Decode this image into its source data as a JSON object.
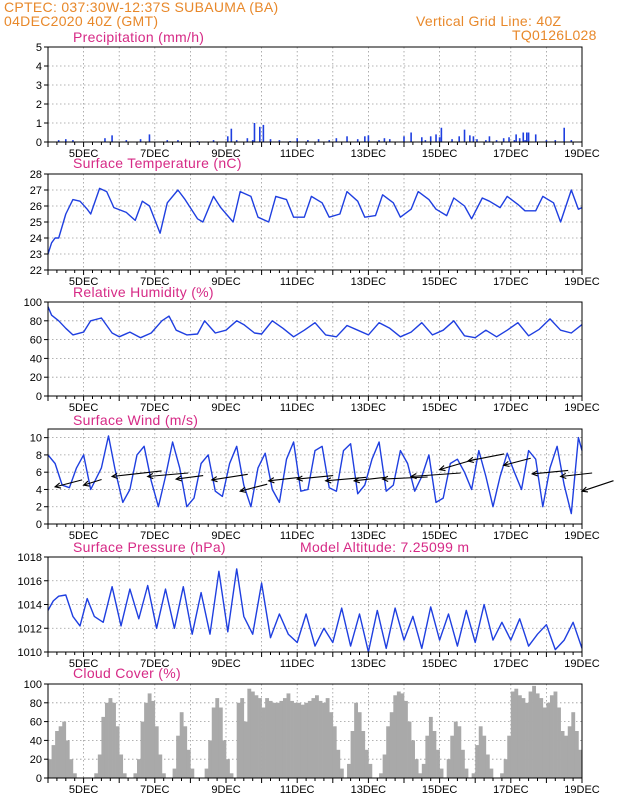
{
  "header": {
    "left_line1": "CPTEC:   037:30W-12:37S   SUBAUMA (BA)",
    "left_line2": "04DEC2020  40Z (GMT)",
    "right_line1": "Vertical Grid Line: 40Z",
    "right_line2": "TQ0126L028"
  },
  "colors": {
    "header": "#e8882a",
    "title": "#d62a86",
    "line": "#1f3fe0",
    "bar": "#1f3fe0",
    "cloud": "#a9a9a9",
    "grid": "#9a9a9a"
  },
  "x_labels": [
    "5DEC",
    "7DEC",
    "9DEC",
    "11DEC",
    "13DEC",
    "15DEC",
    "17DEC",
    "19DEC"
  ],
  "chart_data": [
    {
      "id": "precip",
      "type": "bar",
      "title": "Precipitation (mm/h)",
      "ylim": [
        0,
        5
      ],
      "yticks": [
        0,
        1,
        2,
        3,
        4,
        5
      ],
      "x_unit": "day of December (decimal)",
      "x": [
        4.3,
        4.5,
        4.7,
        5.6,
        5.8,
        6.2,
        6.6,
        6.85,
        7.35,
        7.65,
        8.2,
        8.65,
        9.05,
        9.15,
        9.3,
        9.6,
        9.75,
        9.8,
        9.95,
        10.05,
        10.25,
        10.5,
        10.8,
        11.0,
        11.3,
        11.6,
        11.9,
        12.1,
        12.4,
        12.7,
        12.9,
        13.0,
        13.3,
        13.45,
        13.6,
        14.0,
        14.2,
        14.5,
        14.6,
        14.75,
        14.9,
        15.0,
        15.05,
        15.35,
        15.55,
        15.7,
        15.85,
        15.95,
        16.05,
        16.3,
        16.4,
        16.6,
        16.8,
        16.95,
        17.1,
        17.15,
        17.25,
        17.35,
        17.4,
        17.45,
        17.5,
        17.7,
        18.0,
        18.25,
        18.5,
        18.7
      ],
      "values": [
        0.1,
        0.15,
        0.1,
        0.2,
        0.35,
        0.1,
        0.15,
        0.4,
        0.1,
        0.1,
        0.05,
        0.1,
        0.3,
        0.7,
        0.1,
        0.2,
        0.1,
        1.0,
        0.8,
        0.9,
        0.15,
        0.1,
        0.05,
        0.2,
        0.1,
        0.15,
        0.1,
        0.2,
        0.3,
        0.15,
        0.3,
        0.35,
        0.1,
        0.2,
        0.15,
        0.3,
        0.5,
        0.25,
        0.1,
        0.3,
        0.4,
        0.25,
        0.75,
        0.15,
        0.3,
        0.65,
        0.35,
        0.3,
        0.15,
        0.1,
        0.3,
        0.1,
        0.2,
        0.25,
        0.1,
        0.4,
        0.2,
        0.5,
        0.1,
        0.5,
        0.5,
        0.4,
        0.1,
        0.1,
        0.75,
        0.1
      ]
    },
    {
      "id": "temp",
      "type": "line",
      "title": "Surface Temperature (nC)",
      "ylim": [
        22,
        28
      ],
      "yticks": [
        22,
        23,
        24,
        25,
        26,
        27,
        28
      ],
      "x_unit": "day of December (decimal)",
      "x": [
        4.0,
        4.1,
        4.2,
        4.3,
        4.5,
        4.7,
        4.9,
        5.1,
        5.2,
        5.45,
        5.65,
        5.85,
        6.2,
        6.45,
        6.65,
        6.85,
        7.15,
        7.35,
        7.65,
        7.85,
        8.2,
        8.35,
        8.65,
        8.85,
        9.2,
        9.4,
        9.7,
        9.9,
        10.2,
        10.4,
        10.7,
        10.9,
        11.2,
        11.4,
        11.7,
        11.9,
        12.2,
        12.4,
        12.7,
        12.9,
        13.2,
        13.4,
        13.7,
        13.9,
        14.2,
        14.4,
        14.7,
        14.9,
        15.2,
        15.4,
        15.7,
        15.9,
        16.2,
        16.4,
        16.7,
        16.9,
        17.2,
        17.4,
        17.7,
        17.9,
        18.2,
        18.4,
        18.7,
        18.9,
        19.0
      ],
      "values": [
        23.0,
        23.7,
        24.0,
        24.0,
        25.5,
        26.4,
        26.3,
        25.8,
        25.5,
        27.1,
        26.9,
        25.9,
        25.6,
        25.1,
        26.3,
        26.0,
        24.3,
        26.2,
        27.0,
        26.4,
        25.2,
        25.0,
        26.6,
        25.9,
        25.0,
        26.9,
        26.6,
        25.3,
        25.0,
        26.6,
        26.4,
        25.3,
        25.3,
        26.6,
        26.2,
        25.3,
        25.5,
        26.9,
        26.3,
        25.3,
        25.4,
        26.7,
        26.2,
        25.3,
        25.8,
        26.9,
        26.4,
        25.8,
        25.4,
        26.5,
        26.0,
        25.2,
        26.5,
        26.3,
        25.9,
        26.6,
        26.1,
        25.7,
        25.7,
        26.6,
        26.2,
        25.0,
        27.0,
        25.8,
        25.9
      ]
    },
    {
      "id": "rh",
      "type": "line",
      "title": "Relative Humidity (%)",
      "ylim": [
        0,
        100
      ],
      "yticks": [
        0,
        20,
        40,
        60,
        80,
        100
      ],
      "x_unit": "day of December (decimal)",
      "x": [
        4.0,
        4.1,
        4.3,
        4.5,
        4.7,
        5.0,
        5.2,
        5.5,
        5.8,
        6.0,
        6.3,
        6.6,
        6.9,
        7.2,
        7.4,
        7.6,
        7.9,
        8.2,
        8.4,
        8.7,
        9.0,
        9.3,
        9.5,
        9.8,
        10.0,
        10.3,
        10.6,
        10.9,
        11.2,
        11.5,
        11.8,
        12.1,
        12.4,
        12.7,
        13.0,
        13.3,
        13.6,
        13.9,
        14.2,
        14.5,
        14.8,
        15.1,
        15.4,
        15.7,
        16.0,
        16.3,
        16.6,
        16.9,
        17.2,
        17.5,
        17.8,
        18.1,
        18.4,
        18.7,
        19.0
      ],
      "values": [
        95,
        86,
        80,
        72,
        65,
        68,
        80,
        83,
        67,
        63,
        68,
        62,
        67,
        80,
        85,
        70,
        65,
        66,
        80,
        67,
        70,
        80,
        76,
        67,
        66,
        80,
        72,
        63,
        70,
        78,
        65,
        63,
        75,
        70,
        65,
        78,
        72,
        63,
        68,
        78,
        65,
        70,
        80,
        64,
        62,
        70,
        63,
        70,
        78,
        64,
        71,
        82,
        70,
        67,
        76
      ]
    },
    {
      "id": "wind",
      "type": "line",
      "title": "Surface Wind (m/s)",
      "ylim": [
        0,
        11
      ],
      "yticks": [
        0,
        2,
        4,
        6,
        8,
        10
      ],
      "x_unit": "day of December (decimal)",
      "x": [
        4.0,
        4.2,
        4.4,
        4.6,
        4.8,
        5.0,
        5.2,
        5.5,
        5.7,
        5.9,
        6.1,
        6.3,
        6.5,
        6.7,
        6.9,
        7.1,
        7.3,
        7.5,
        7.7,
        7.9,
        8.1,
        8.3,
        8.5,
        8.7,
        8.9,
        9.1,
        9.3,
        9.5,
        9.7,
        9.9,
        10.1,
        10.3,
        10.5,
        10.7,
        10.9,
        11.1,
        11.3,
        11.5,
        11.7,
        11.9,
        12.1,
        12.3,
        12.5,
        12.7,
        12.9,
        13.1,
        13.3,
        13.5,
        13.7,
        13.9,
        14.1,
        14.3,
        14.5,
        14.7,
        14.9,
        15.1,
        15.3,
        15.5,
        15.7,
        15.9,
        16.1,
        16.3,
        16.5,
        16.7,
        16.9,
        17.1,
        17.3,
        17.5,
        17.7,
        17.9,
        18.1,
        18.3,
        18.5,
        18.7,
        18.9,
        19.0
      ],
      "values": [
        8.0,
        7.0,
        4.5,
        4.2,
        6.5,
        8.0,
        4.0,
        6.5,
        10.2,
        6.0,
        2.5,
        4.0,
        8.0,
        9.0,
        5.0,
        2.0,
        5.5,
        9.5,
        6.5,
        2.0,
        3.0,
        7.0,
        8.0,
        3.8,
        3.2,
        7.0,
        9.0,
        4.5,
        2.0,
        6.5,
        8.2,
        4.0,
        2.5,
        7.5,
        9.5,
        3.8,
        4.0,
        8.5,
        9.0,
        4.2,
        3.8,
        8.5,
        9.3,
        3.5,
        4.5,
        7.5,
        9.5,
        3.8,
        4.5,
        8.5,
        7.0,
        3.8,
        5.5,
        8.0,
        2.5,
        3.0,
        7.0,
        7.5,
        6.0,
        4.0,
        8.5,
        5.5,
        2.0,
        5.5,
        8.2,
        6.0,
        4.0,
        8.5,
        7.5,
        2.0,
        6.5,
        9.0,
        4.5,
        1.2,
        10.0,
        8.5
      ],
      "arrows": {
        "x": [
          4.2,
          5.0,
          5.8,
          6.8,
          7.6,
          8.6,
          9.4,
          10.2,
          11.0,
          11.8,
          12.6,
          13.4,
          14.2,
          15.0,
          15.8,
          16.8,
          17.6,
          18.4,
          19.0
        ],
        "level": [
          4.3,
          4.5,
          5.5,
          5.5,
          5.2,
          5.1,
          3.8,
          5.0,
          5.2,
          5.0,
          5.0,
          5.2,
          5.5,
          6.3,
          7.3,
          6.8,
          5.8,
          5.5,
          3.8
        ],
        "u": [
          3.0,
          2.0,
          5.5,
          4.5,
          3.0,
          4.0,
          3.0,
          3.5,
          4.0,
          4.5,
          3.5,
          5.0,
          5.5,
          4.0,
          4.0,
          3.0,
          4.0,
          3.5,
          3.5
        ],
        "v": [
          1.0,
          0.8,
          0.8,
          0.5,
          0.5,
          0.8,
          1.0,
          0.5,
          0.5,
          0.5,
          0.5,
          0.3,
          0.5,
          1.5,
          1.0,
          1.0,
          0.5,
          0.5,
          1.5
        ]
      }
    },
    {
      "id": "pres",
      "type": "line",
      "title": "Surface Pressure (hPa)",
      "subtitle": "Model Altitude: 7.25099 m",
      "ylim": [
        1010,
        1018
      ],
      "yticks": [
        1010,
        1012,
        1014,
        1016,
        1018
      ],
      "x_unit": "day of December (decimal)",
      "x": [
        4.0,
        4.15,
        4.3,
        4.5,
        4.7,
        4.9,
        5.1,
        5.3,
        5.55,
        5.8,
        6.05,
        6.3,
        6.55,
        6.8,
        7.05,
        7.3,
        7.55,
        7.8,
        8.05,
        8.3,
        8.55,
        8.8,
        9.05,
        9.3,
        9.5,
        9.75,
        10.0,
        10.25,
        10.5,
        10.75,
        11.0,
        11.25,
        11.5,
        11.75,
        12.0,
        12.25,
        12.5,
        12.75,
        13.0,
        13.25,
        13.5,
        13.75,
        14.0,
        14.25,
        14.5,
        14.75,
        15.0,
        15.25,
        15.5,
        15.75,
        16.0,
        16.25,
        16.5,
        16.75,
        17.0,
        17.25,
        17.5,
        17.75,
        18.0,
        18.25,
        18.5,
        18.75,
        19.0
      ],
      "values": [
        1013.5,
        1014.3,
        1014.7,
        1014.8,
        1013.0,
        1012.2,
        1014.5,
        1013.0,
        1012.5,
        1015.5,
        1012.2,
        1015.3,
        1012.8,
        1015.6,
        1012.0,
        1015.3,
        1012.0,
        1015.5,
        1011.5,
        1015.0,
        1011.5,
        1016.8,
        1011.7,
        1017.0,
        1013.0,
        1011.5,
        1015.8,
        1011.2,
        1013.2,
        1011.5,
        1010.8,
        1013.2,
        1010.5,
        1012.0,
        1010.8,
        1013.7,
        1010.5,
        1013.2,
        1010.0,
        1013.5,
        1010.3,
        1013.7,
        1011.0,
        1013.0,
        1010.3,
        1013.8,
        1011.0,
        1013.2,
        1010.5,
        1013.5,
        1010.8,
        1014.0,
        1011.0,
        1012.5,
        1011.0,
        1012.8,
        1010.5,
        1011.5,
        1012.3,
        1010.2,
        1011.0,
        1012.5,
        1010.3
      ]
    },
    {
      "id": "cloud",
      "type": "bar",
      "title": "Cloud Cover (%)",
      "ylim": [
        0,
        100
      ],
      "yticks": [
        0,
        20,
        40,
        60,
        80,
        100
      ],
      "x_unit": "day of December (decimal)",
      "x": [
        4.0,
        4.1,
        4.2,
        4.3,
        4.4,
        4.5,
        4.6,
        4.7,
        4.8,
        4.9,
        5.0,
        5.1,
        5.2,
        5.3,
        5.4,
        5.5,
        5.6,
        5.7,
        5.8,
        5.9,
        6.0,
        6.1,
        6.2,
        6.3,
        6.4,
        6.5,
        6.6,
        6.7,
        6.8,
        6.9,
        7.0,
        7.1,
        7.2,
        7.3,
        7.4,
        7.5,
        7.6,
        7.7,
        7.8,
        7.9,
        8.0,
        8.1,
        8.2,
        8.3,
        8.4,
        8.5,
        8.6,
        8.7,
        8.8,
        8.9,
        9.0,
        9.1,
        9.2,
        9.3,
        9.4,
        9.5,
        9.6,
        9.7,
        9.8,
        9.9,
        10.0,
        10.1,
        10.2,
        10.3,
        10.4,
        10.5,
        10.6,
        10.7,
        10.8,
        10.9,
        11.0,
        11.1,
        11.2,
        11.3,
        11.4,
        11.5,
        11.6,
        11.7,
        11.8,
        11.9,
        12.0,
        12.1,
        12.2,
        12.3,
        12.4,
        12.5,
        12.6,
        12.7,
        12.8,
        12.9,
        13.0,
        13.1,
        13.2,
        13.3,
        13.4,
        13.5,
        13.6,
        13.7,
        13.8,
        13.9,
        14.0,
        14.1,
        14.2,
        14.3,
        14.4,
        14.5,
        14.6,
        14.7,
        14.8,
        14.9,
        15.0,
        15.1,
        15.2,
        15.3,
        15.4,
        15.5,
        15.6,
        15.7,
        15.8,
        15.9,
        16.0,
        16.1,
        16.2,
        16.3,
        16.4,
        16.5,
        16.6,
        16.7,
        16.8,
        16.9,
        17.0,
        17.1,
        17.2,
        17.3,
        17.4,
        17.5,
        17.6,
        17.7,
        17.8,
        17.9,
        18.0,
        18.1,
        18.2,
        18.3,
        18.4,
        18.5,
        18.6,
        18.7,
        18.8,
        18.9
      ],
      "values": [
        20,
        35,
        50,
        55,
        60,
        40,
        20,
        5,
        0,
        0,
        0,
        0,
        0,
        5,
        25,
        65,
        80,
        85,
        80,
        55,
        25,
        5,
        0,
        0,
        5,
        20,
        60,
        80,
        90,
        82,
        55,
        25,
        5,
        0,
        0,
        10,
        45,
        70,
        55,
        30,
        10,
        0,
        0,
        0,
        10,
        40,
        75,
        85,
        75,
        40,
        20,
        5,
        0,
        80,
        85,
        60,
        95,
        92,
        88,
        85,
        75,
        85,
        82,
        80,
        80,
        82,
        85,
        90,
        82,
        80,
        80,
        78,
        80,
        82,
        85,
        88,
        82,
        80,
        85,
        70,
        55,
        30,
        10,
        0,
        15,
        50,
        80,
        70,
        50,
        30,
        15,
        0,
        0,
        5,
        25,
        55,
        70,
        88,
        92,
        90,
        82,
        60,
        40,
        20,
        5,
        15,
        45,
        65,
        50,
        30,
        10,
        0,
        20,
        45,
        60,
        55,
        30,
        10,
        0,
        5,
        35,
        55,
        45,
        25,
        10,
        0,
        0,
        5,
        20,
        45,
        92,
        95,
        88,
        85,
        80,
        92,
        98,
        90,
        85,
        75,
        80,
        88,
        92,
        75,
        50,
        45,
        55,
        70,
        50,
        30
      ]
    }
  ]
}
